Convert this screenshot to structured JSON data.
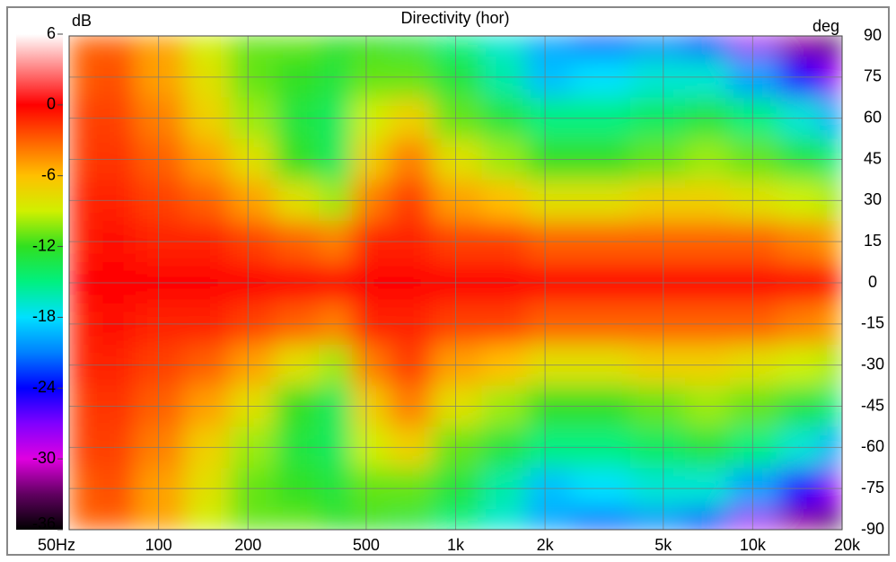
{
  "chart_data": {
    "type": "heatmap",
    "title": "Directivity (hor)",
    "colorbar_label": "dB",
    "y_label": "deg",
    "x": [
      50,
      70,
      100,
      150,
      200,
      300,
      400,
      500,
      700,
      1000,
      1500,
      2000,
      3000,
      5000,
      7000,
      10000,
      15000,
      20000
    ],
    "y": [
      90,
      75,
      60,
      45,
      30,
      15,
      0,
      -15,
      -30,
      -45,
      -60,
      -75,
      -90
    ],
    "z": [
      [
        -3,
        -3,
        -5,
        -9,
        -11,
        -11,
        -12,
        -12,
        -13,
        -15,
        -17,
        -20,
        -22,
        -21,
        -24,
        -28,
        -32,
        -36
      ],
      [
        -3,
        -2.5,
        -5,
        -8,
        -11,
        -12,
        -13,
        -11,
        -11,
        -13,
        -16,
        -19,
        -18,
        -17,
        -17,
        -20,
        -25,
        -28
      ],
      [
        -2,
        -2,
        -4,
        -7,
        -10,
        -13,
        -14,
        -9,
        -7,
        -11,
        -13,
        -15,
        -15,
        -14,
        -13,
        -15,
        -17,
        -20
      ],
      [
        -2,
        -1.5,
        -3,
        -5,
        -8,
        -12,
        -14,
        -7,
        -4,
        -8,
        -10,
        -12,
        -12,
        -11,
        -10,
        -11,
        -13,
        -15
      ],
      [
        -1,
        -1,
        -2,
        -3,
        -5,
        -8,
        -10,
        -4,
        -2,
        -5,
        -6,
        -8,
        -8,
        -7,
        -7,
        -8,
        -9,
        -10
      ],
      [
        -1,
        -0.5,
        -1,
        -1,
        -2,
        -3,
        -4,
        -1,
        -1,
        -2,
        -2,
        -3,
        -3,
        -3,
        -3,
        -3,
        -4,
        -5
      ],
      [
        0,
        0,
        0,
        0,
        0,
        0,
        0,
        0,
        0,
        0,
        0,
        0,
        0,
        0,
        0,
        0,
        0,
        0
      ],
      [
        -1,
        -0.5,
        -1,
        -1,
        -2,
        -3,
        -4,
        -1,
        -1,
        -2,
        -2,
        -3,
        -3,
        -3,
        -3,
        -3,
        -4,
        -5
      ],
      [
        -1,
        -1,
        -2,
        -3,
        -5,
        -8,
        -10,
        -4,
        -2,
        -5,
        -6,
        -8,
        -8,
        -7,
        -7,
        -8,
        -9,
        -10
      ],
      [
        -2,
        -1.5,
        -3,
        -5,
        -8,
        -12,
        -14,
        -7,
        -4,
        -8,
        -10,
        -12,
        -12,
        -11,
        -10,
        -11,
        -13,
        -15
      ],
      [
        -2,
        -2,
        -4,
        -7,
        -10,
        -13,
        -14,
        -9,
        -7,
        -11,
        -13,
        -15,
        -15,
        -14,
        -13,
        -15,
        -17,
        -20
      ],
      [
        -3,
        -2.5,
        -5,
        -8,
        -11,
        -12,
        -13,
        -11,
        -11,
        -13,
        -16,
        -19,
        -18,
        -17,
        -17,
        -20,
        -25,
        -28
      ],
      [
        -3,
        -3,
        -5,
        -9,
        -11,
        -11,
        -12,
        -12,
        -13,
        -15,
        -17,
        -20,
        -22,
        -21,
        -24,
        -28,
        -32,
        -36
      ]
    ],
    "xlim": [
      50,
      20000
    ],
    "log_x": true,
    "xticks": [
      {
        "value": 50,
        "label": "50Hz"
      },
      100,
      200,
      500,
      {
        "value": 1000,
        "label": "1k"
      },
      {
        "value": 2000,
        "label": "2k"
      },
      {
        "value": 5000,
        "label": "5k"
      },
      {
        "value": 10000,
        "label": "10k"
      },
      {
        "value": 20000,
        "label": "20k"
      }
    ],
    "ylim": [
      -90,
      90
    ],
    "yticks": [
      90,
      75,
      60,
      45,
      30,
      15,
      0,
      -15,
      -30,
      -45,
      -60,
      -75,
      -90
    ],
    "clim": [
      -36,
      6
    ],
    "cticks": [
      6,
      0,
      -6,
      -12,
      -18,
      -24,
      -30,
      -36
    ],
    "colorscale": [
      {
        "value": 6,
        "color": "#ffffff"
      },
      {
        "value": 3,
        "color": "#ff8080"
      },
      {
        "value": 0,
        "color": "#ff0000"
      },
      {
        "value": -3,
        "color": "#ff6000"
      },
      {
        "value": -6,
        "color": "#ffc000"
      },
      {
        "value": -9,
        "color": "#d0f000"
      },
      {
        "value": -12,
        "color": "#30e020"
      },
      {
        "value": -15,
        "color": "#00f080"
      },
      {
        "value": -18,
        "color": "#00e0ff"
      },
      {
        "value": -21,
        "color": "#0080ff"
      },
      {
        "value": -24,
        "color": "#0000ff"
      },
      {
        "value": -27,
        "color": "#8000ff"
      },
      {
        "value": -30,
        "color": "#e000e0"
      },
      {
        "value": -33,
        "color": "#600060"
      },
      {
        "value": -36,
        "color": "#000000"
      }
    ],
    "grid": true
  }
}
